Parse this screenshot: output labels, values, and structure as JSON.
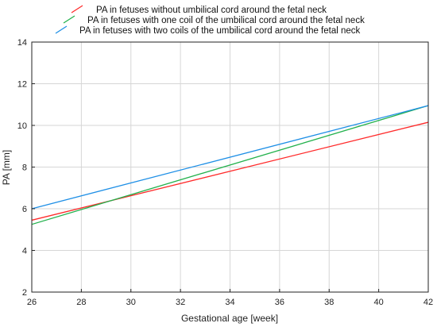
{
  "chart_data": {
    "type": "line",
    "xlabel": "Gestational age [week]",
    "ylabel": "PA [mm]",
    "xlim": [
      26,
      42
    ],
    "ylim": [
      2,
      14
    ],
    "xticks": [
      26,
      28,
      30,
      32,
      34,
      36,
      38,
      40,
      42
    ],
    "yticks": [
      2,
      4,
      6,
      8,
      10,
      12,
      14
    ],
    "xtick_labels": [
      "26",
      "28",
      "30",
      "32",
      "34",
      "36",
      "38",
      "40",
      "42"
    ],
    "ytick_labels": [
      "2",
      "4",
      "6",
      "8",
      "10",
      "12",
      "14"
    ],
    "grid": true,
    "legend_position": "top-center",
    "series": [
      {
        "name": "PA in fetuses without umbilical cord around the fetal neck",
        "color": "#ff2a2a",
        "x": [
          26,
          42
        ],
        "y": [
          5.45,
          10.15
        ]
      },
      {
        "name": "PA in fetuses with one coil of the umbilical cord around the fetal neck",
        "color": "#22b14c",
        "x": [
          26,
          42
        ],
        "y": [
          5.25,
          10.95
        ]
      },
      {
        "name": "PA in fetuses with two coils of the umbilical cord around the fetal neck",
        "color": "#1e8fe6",
        "x": [
          26,
          42
        ],
        "y": [
          6.0,
          10.95
        ]
      }
    ]
  }
}
